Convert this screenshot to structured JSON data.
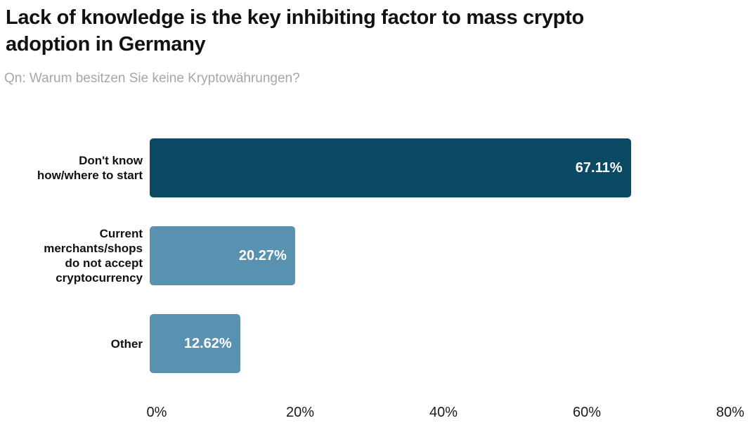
{
  "chart_data": {
    "type": "bar",
    "orientation": "horizontal",
    "title": "Lack of knowledge is the key inhibiting factor to mass crypto adoption in Germany",
    "subtitle": "Qn: Warum besitzen Sie keine Kryptowährungen?",
    "categories": [
      "Don't know how/where to start",
      "Current merchants/shops do not accept cryptocurrency",
      "Other"
    ],
    "values": [
      67.11,
      20.27,
      12.62
    ],
    "bars": [
      {
        "label_display": "Don't know\nhow/where to start",
        "value": 67.11,
        "value_label": "67.11%",
        "color": "#0b4a64"
      },
      {
        "label_display": "Current\nmerchants/shops\ndo not accept\ncryptocurrency",
        "value": 20.27,
        "value_label": "20.27%",
        "color": "#5991b0"
      },
      {
        "label_display": "Other",
        "value": 12.62,
        "value_label": "12.62%",
        "color": "#5991b0"
      }
    ],
    "xlabel": "",
    "ylabel": "",
    "xlim": [
      0,
      80
    ],
    "x_ticks": [
      "0%",
      "20%",
      "40%",
      "60%",
      "80%"
    ],
    "x_tick_values": [
      0,
      20,
      40,
      60,
      80
    ],
    "grid": false,
    "legend": false,
    "colors": {
      "dark_bar": "#0b4a64",
      "light_bar": "#5991b0",
      "title_text": "#111111",
      "subtitle_text": "#a6a6a6",
      "value_text": "#ffffff",
      "axis_text": "#1a1a1a",
      "background": "#ffffff"
    }
  }
}
